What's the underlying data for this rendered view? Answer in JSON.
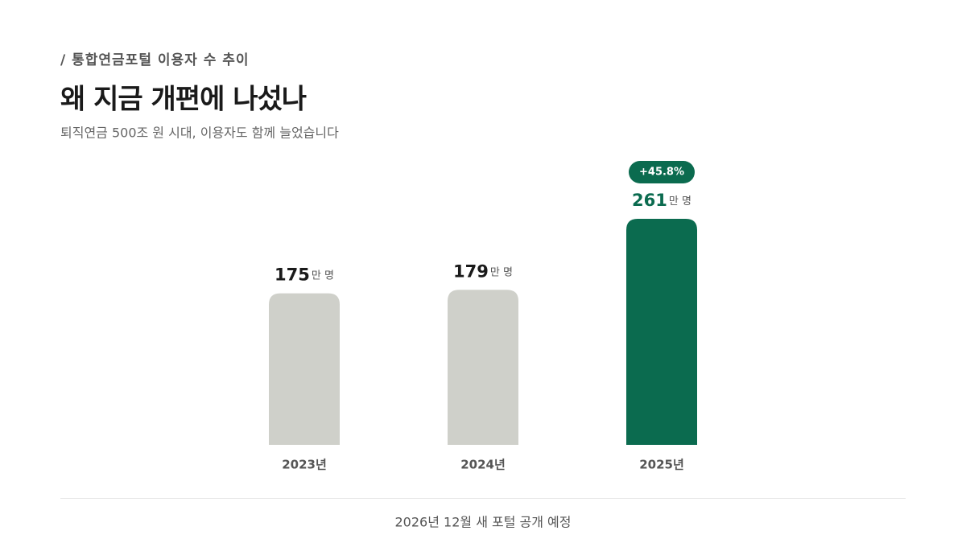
{
  "chart_data": {
    "type": "bar",
    "kicker": "/ 통합연금포털 이용자 수 추이",
    "title": "왜 지금 개편에 나섰나",
    "subtitle": "퇴직연금 500조 원 시대, 이용자도 함께 늘었습니다",
    "categories": [
      "2023년",
      "2024년",
      "2025년"
    ],
    "values": [
      175,
      179,
      261
    ],
    "unit": "만 명",
    "colors": [
      "#cfd0ca",
      "#cfd0ca",
      "#0b6b4f"
    ],
    "annotation": "+45.8%",
    "note": "2026년 12월 새 포털 공개 예정"
  }
}
